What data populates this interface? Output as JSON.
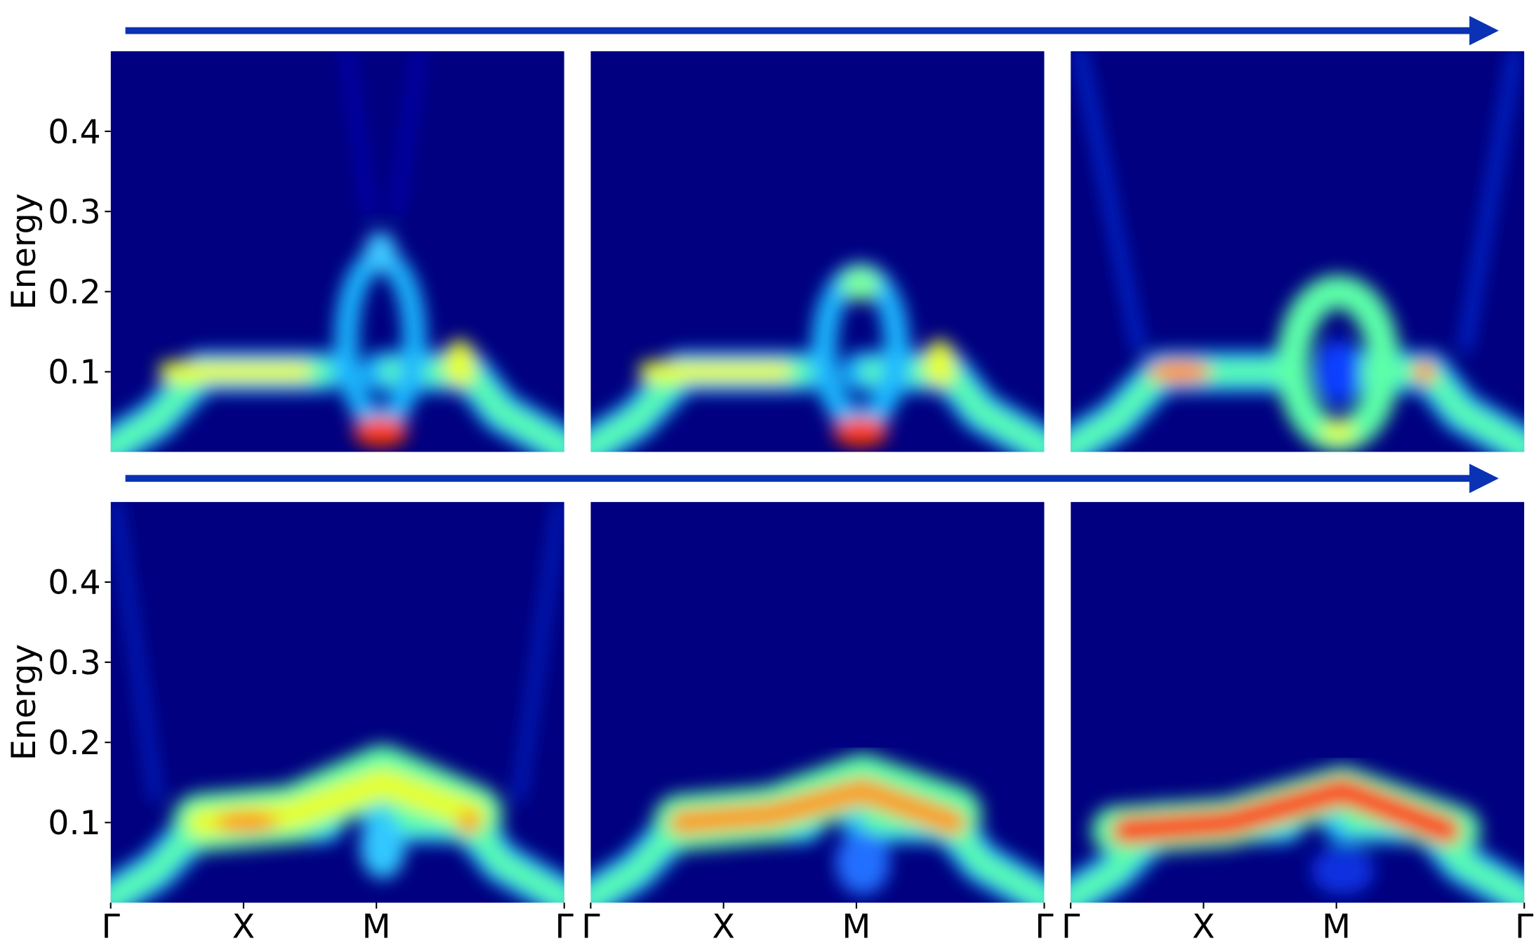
{
  "chart_data": [
    {
      "type": "heatmap",
      "ylabel": "Energy",
      "ylim": [
        0,
        0.5
      ],
      "yticks": [
        0.1,
        0.2,
        0.3,
        0.4
      ],
      "xlim": [
        0,
        3.414
      ]
    },
    {
      "type": "heatmap",
      "ylim": [
        0,
        0.5
      ],
      "xlim": [
        0,
        3.414
      ]
    },
    {
      "type": "heatmap",
      "ylim": [
        0,
        0.5
      ],
      "xlim": [
        0,
        3.414
      ]
    },
    {
      "type": "heatmap",
      "ylabel": "Energy",
      "ylim": [
        0,
        0.5
      ],
      "yticks": [
        0.1,
        0.2,
        0.3,
        0.4
      ],
      "xlim": [
        0,
        3.414
      ],
      "xticks": [
        {
          "value": 0,
          "label": "Γ"
        },
        {
          "value": 1,
          "label": "X"
        },
        {
          "value": 2,
          "label": "M"
        },
        {
          "value": 3.414,
          "label": "Γ"
        }
      ]
    },
    {
      "type": "heatmap",
      "ylim": [
        0,
        0.5
      ],
      "xlim": [
        0,
        3.414
      ],
      "xticks": [
        {
          "value": 0,
          "label": "Γ"
        },
        {
          "value": 1,
          "label": "X"
        },
        {
          "value": 2,
          "label": "M"
        },
        {
          "value": 3.414,
          "label": "Γ"
        }
      ]
    },
    {
      "type": "heatmap",
      "ylim": [
        0,
        0.5
      ],
      "xlim": [
        0,
        3.414
      ],
      "xticks": [
        {
          "value": 0,
          "label": "Γ"
        },
        {
          "value": 1,
          "label": "X"
        },
        {
          "value": 2,
          "label": "M"
        },
        {
          "value": 3.414,
          "label": "Γ"
        }
      ]
    }
  ]
}
